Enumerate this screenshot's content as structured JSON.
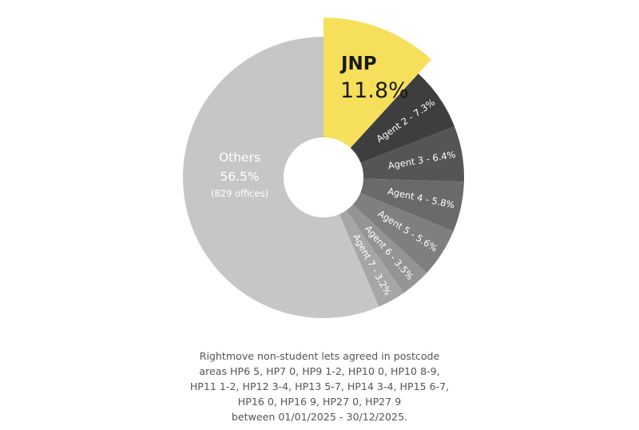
{
  "chart_data": {
    "type": "pie",
    "style": "donut",
    "slices": [
      {
        "name": "JNP",
        "value": 11.8,
        "label": "JNP",
        "value_label": "11.8%",
        "color": "#f6df5a",
        "exploded": true
      },
      {
        "name": "Agent 2",
        "value": 7.3,
        "label": "Agent 2 - 7.3%",
        "color": "#3e3e40"
      },
      {
        "name": "Agent 3",
        "value": 6.4,
        "label": "Agent 3 - 6.4%",
        "color": "#555557"
      },
      {
        "name": "Agent 4",
        "value": 5.8,
        "label": "Agent 4 - 5.8%",
        "color": "#6a6a6c"
      },
      {
        "name": "Agent 5",
        "value": 5.6,
        "label": "Agent 5 - 5.6%",
        "color": "#7f7f81"
      },
      {
        "name": "Agent 6",
        "value": 3.5,
        "label": "Agent 6 - 3.5%",
        "color": "#949496"
      },
      {
        "name": "Agent 7",
        "value": 3.2,
        "label": "Agent 7 - 3.2%",
        "color": "#a6a6a8"
      },
      {
        "name": "Others",
        "value": 56.5,
        "label": "Others",
        "value_label": "56.5%",
        "sublabel": "(829 offices)",
        "color": "#c6c6c6"
      }
    ]
  },
  "caption": [
    "Rightmove non-student lets agreed in postcode",
    "areas HP6 5, HP7 0, HP9 1-2, HP10 0, HP10 8-9,",
    "HP11 1-2, HP12 3-4, HP13 5-7, HP14 3-4, HP15 6-7,",
    "HP16 0, HP16 9, HP27 0, HP27 9",
    "between 01/01/2025 - 30/12/2025."
  ]
}
